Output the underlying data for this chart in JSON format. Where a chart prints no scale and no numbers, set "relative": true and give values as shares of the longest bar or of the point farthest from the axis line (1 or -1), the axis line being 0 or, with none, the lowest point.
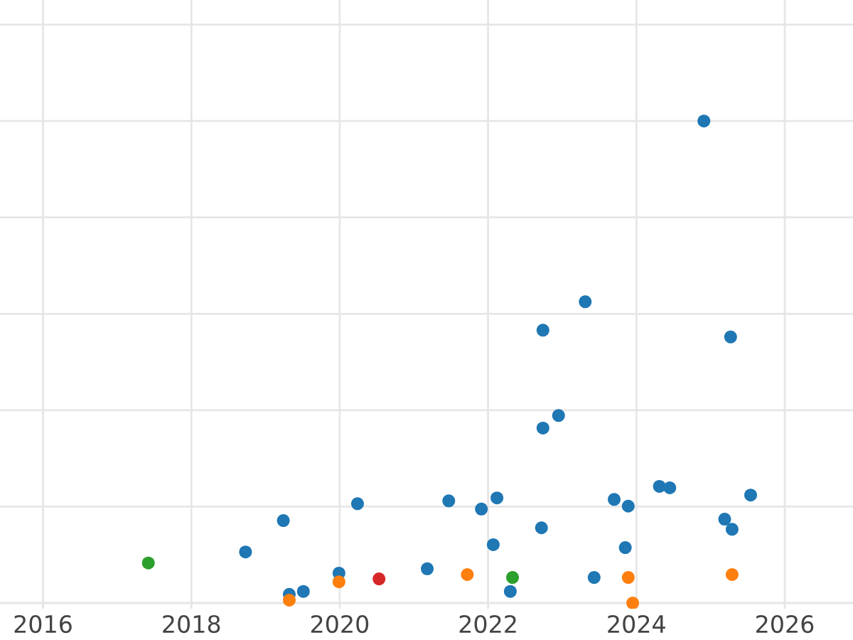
{
  "chart_data": {
    "type": "scatter",
    "relative": true,
    "grid": true,
    "marker": "circle",
    "xlim": [
      2015.42,
      2026.92
    ],
    "xticks": [
      2016,
      2018,
      2020,
      2022,
      2024,
      2026
    ],
    "series": [
      {
        "color": "#1f77b4",
        "x": [
          2024.91,
          2023.31,
          2022.74,
          2025.27,
          2022.95,
          2022.74,
          2024.31,
          2024.45,
          2025.54,
          2022.12,
          2021.47,
          2023.7,
          2023.89,
          2020.24,
          2021.91,
          2019.24,
          2025.19,
          2025.29,
          2022.72,
          2018.73,
          2022.07,
          2023.85,
          2019.99,
          2021.18,
          2023.43,
          2019.32,
          2019.51,
          2022.3
        ],
        "values": [
          1.0,
          0.625,
          0.566,
          0.552,
          0.389,
          0.363,
          0.242,
          0.239,
          0.224,
          0.218,
          0.212,
          0.215,
          0.201,
          0.206,
          0.195,
          0.171,
          0.174,
          0.153,
          0.156,
          0.106,
          0.121,
          0.115,
          0.062,
          0.071,
          0.053,
          0.018,
          0.024,
          0.024
        ]
      },
      {
        "color": "#ff7f0e",
        "x": [
          2019.32,
          2019.99,
          2021.72,
          2023.89,
          2023.95,
          2025.29
        ],
        "values": [
          0.006,
          0.044,
          0.059,
          0.053,
          0.0,
          0.059
        ]
      },
      {
        "color": "#2ca02c",
        "x": [
          2017.42,
          2022.33
        ],
        "values": [
          0.083,
          0.053
        ]
      },
      {
        "color": "#d62728",
        "x": [
          2020.53
        ],
        "values": [
          0.05
        ]
      }
    ]
  }
}
